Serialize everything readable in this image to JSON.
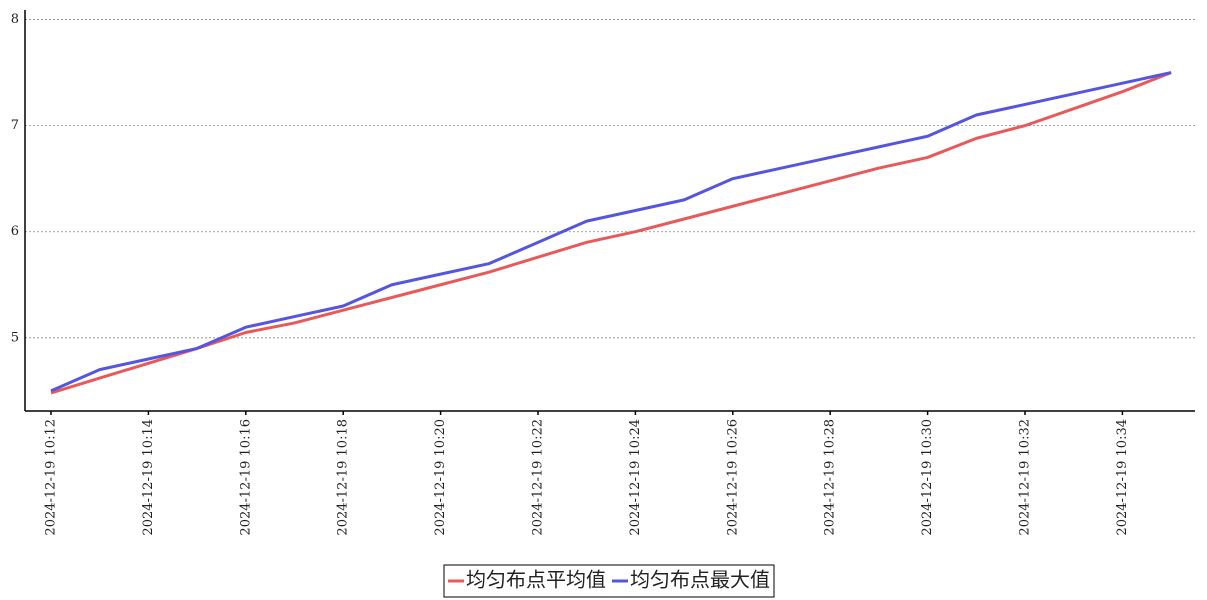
{
  "chart_data": {
    "type": "line",
    "categories": [
      "2024-12-19 10:12",
      null,
      "2024-12-19 10:14",
      null,
      "2024-12-19 10:16",
      null,
      "2024-12-19 10:18",
      null,
      "2024-12-19 10:20",
      null,
      "2024-12-19 10:22",
      null,
      "2024-12-19 10:24",
      null,
      "2024-12-19 10:26",
      null,
      "2024-12-19 10:28",
      null,
      "2024-12-19 10:30",
      null,
      "2024-12-19 10:32",
      null,
      "2024-12-19 10:34",
      null
    ],
    "series": [
      {
        "name": "均匀布点平均值",
        "color": "#e85a5a",
        "values": [
          4.48,
          4.62,
          4.76,
          4.9,
          5.05,
          5.14,
          5.26,
          5.38,
          5.5,
          5.62,
          5.76,
          5.9,
          6.0,
          6.12,
          6.24,
          6.36,
          6.48,
          6.6,
          6.7,
          6.88,
          7.0,
          7.16,
          7.32,
          7.5
        ]
      },
      {
        "name": "均匀布点最大值",
        "color": "#5555e0",
        "values": [
          4.5,
          4.7,
          4.8,
          4.9,
          5.1,
          5.2,
          5.3,
          5.5,
          5.6,
          5.7,
          5.9,
          6.1,
          6.2,
          6.3,
          6.5,
          6.6,
          6.7,
          6.8,
          6.9,
          7.1,
          7.2,
          7.3,
          7.4,
          7.5
        ]
      }
    ],
    "ylim": [
      4.31,
      8.09
    ],
    "yticks": [
      5,
      6,
      7,
      8
    ],
    "grid": true,
    "legend": "bottom"
  }
}
